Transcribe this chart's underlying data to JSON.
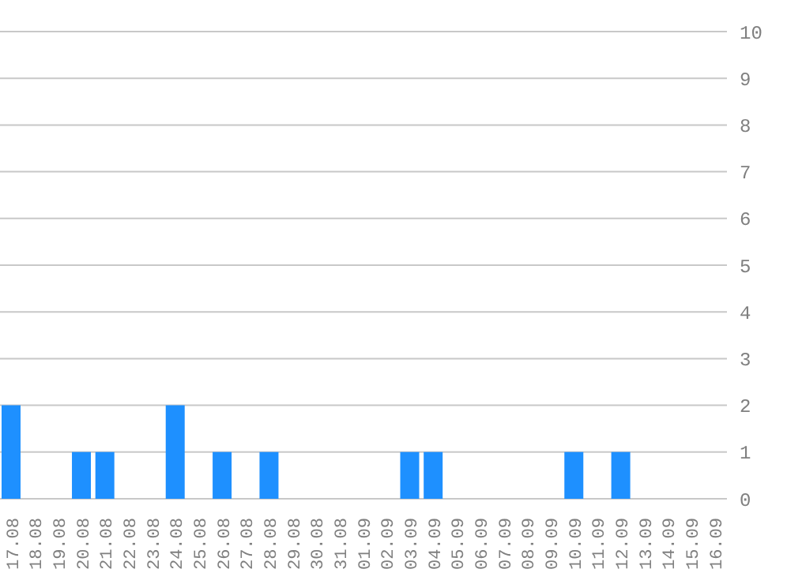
{
  "chart_data": {
    "type": "bar",
    "categories": [
      "17.08",
      "18.08",
      "19.08",
      "20.08",
      "21.08",
      "22.08",
      "23.08",
      "24.08",
      "25.08",
      "26.08",
      "27.08",
      "28.08",
      "29.08",
      "30.08",
      "31.08",
      "01.09",
      "02.09",
      "03.09",
      "04.09",
      "05.09",
      "06.09",
      "07.09",
      "08.09",
      "09.09",
      "10.09",
      "11.09",
      "12.09",
      "13.09",
      "14.09",
      "15.09",
      "16.09"
    ],
    "values": [
      2,
      0,
      0,
      1,
      1,
      0,
      0,
      2,
      0,
      1,
      0,
      1,
      0,
      0,
      0,
      0,
      0,
      1,
      1,
      0,
      0,
      0,
      0,
      0,
      1,
      0,
      1,
      0,
      0,
      0,
      0
    ],
    "color": "#1e90ff",
    "ylim": [
      0,
      10
    ],
    "yticks": [
      0,
      1,
      2,
      3,
      4,
      5,
      6,
      7,
      8,
      9,
      10
    ],
    "grid": "y"
  }
}
